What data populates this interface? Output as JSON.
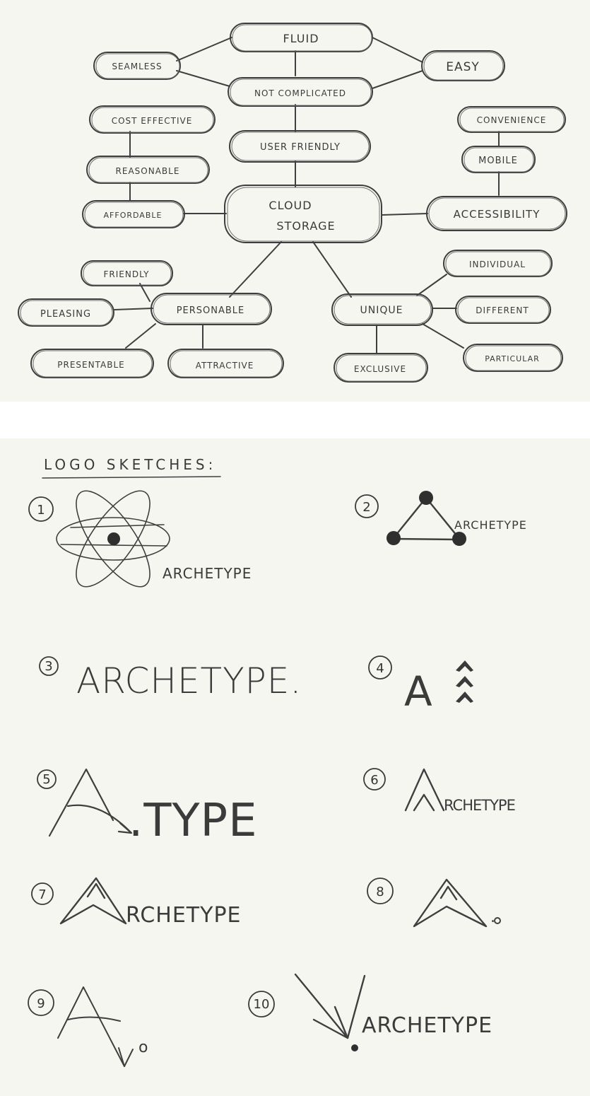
{
  "mind_map": {
    "nodes": [
      {
        "id": "fluid",
        "label": "FLUID"
      },
      {
        "id": "seamless",
        "label": "SEAMLESS"
      },
      {
        "id": "easy",
        "label": "EASY"
      },
      {
        "id": "not_complicated",
        "label": "NOT COMPLICATED"
      },
      {
        "id": "cost_effective",
        "label": "COST EFFECTIVE"
      },
      {
        "id": "user_friendly",
        "label": "USER FRIENDLY"
      },
      {
        "id": "convenience",
        "label": "CONVENIENCE"
      },
      {
        "id": "mobile",
        "label": "MOBILE"
      },
      {
        "id": "reasonable",
        "label": "REASONABLE"
      },
      {
        "id": "affordable",
        "label": "AFFORDABLE"
      },
      {
        "id": "cloud_storage",
        "label": "CLOUD STORAGE",
        "line1": "CLOUD",
        "line2": "STORAGE"
      },
      {
        "id": "accessibility",
        "label": "ACCESSIBILITY"
      },
      {
        "id": "friendly",
        "label": "FRIENDLY"
      },
      {
        "id": "individual",
        "label": "INDIVIDUAL"
      },
      {
        "id": "pleasing",
        "label": "PLEASING"
      },
      {
        "id": "personable",
        "label": "PERSONABLE"
      },
      {
        "id": "unique",
        "label": "UNIQUE"
      },
      {
        "id": "different",
        "label": "DIFFERENT"
      },
      {
        "id": "presentable",
        "label": "PRESENTABLE"
      },
      {
        "id": "attractive",
        "label": "ATTRACTIVE"
      },
      {
        "id": "exclusive",
        "label": "EXCLUSIVE"
      },
      {
        "id": "particular",
        "label": "PARTICULAR"
      }
    ]
  },
  "logo_sketches": {
    "heading": "LOGO SKETCHES:",
    "items": [
      {
        "number": "1",
        "text": "ARCHETYPE"
      },
      {
        "number": "2",
        "text": "ARCHETYPE"
      },
      {
        "number": "3",
        "text": "ARCHETYPE."
      },
      {
        "number": "4",
        "text": "A"
      },
      {
        "number": "5",
        "text": "A",
        "text2": ".TYPE"
      },
      {
        "number": "6",
        "text": "RCHETYPE"
      },
      {
        "number": "7",
        "text": "RCHETYPE"
      },
      {
        "number": "8",
        "text": "."
      },
      {
        "number": "9",
        "text": "o"
      },
      {
        "number": "10",
        "text": "ARCHETYPE"
      }
    ]
  },
  "colors": {
    "paper": "#f6f6f1",
    "pencil": "#3e3e3e",
    "gap": "#ffffff"
  }
}
